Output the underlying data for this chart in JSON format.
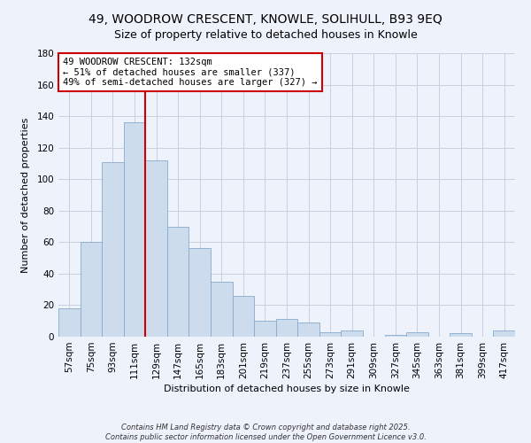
{
  "title": "49, WOODROW CRESCENT, KNOWLE, SOLIHULL, B93 9EQ",
  "subtitle": "Size of property relative to detached houses in Knowle",
  "xlabel": "Distribution of detached houses by size in Knowle",
  "ylabel": "Number of detached properties",
  "categories": [
    "57sqm",
    "75sqm",
    "93sqm",
    "111sqm",
    "129sqm",
    "147sqm",
    "165sqm",
    "183sqm",
    "201sqm",
    "219sqm",
    "237sqm",
    "255sqm",
    "273sqm",
    "291sqm",
    "309sqm",
    "327sqm",
    "345sqm",
    "363sqm",
    "381sqm",
    "399sqm",
    "417sqm"
  ],
  "values": [
    18,
    60,
    111,
    136,
    112,
    70,
    56,
    35,
    26,
    10,
    11,
    9,
    3,
    4,
    0,
    1,
    3,
    0,
    2,
    0,
    4
  ],
  "bar_color": "#ccdcec",
  "bar_edge_color": "#88aacc",
  "vline_position": 3.5,
  "vline_color": "#cc0000",
  "annotation_line1": "49 WOODROW CRESCENT: 132sqm",
  "annotation_line2": "← 51% of detached houses are smaller (337)",
  "annotation_line3": "49% of semi-detached houses are larger (327) →",
  "annotation_box_facecolor": "#ffffff",
  "annotation_box_edgecolor": "#cc0000",
  "ylim": [
    0,
    180
  ],
  "yticks": [
    0,
    20,
    40,
    60,
    80,
    100,
    120,
    140,
    160,
    180
  ],
  "footer1": "Contains HM Land Registry data © Crown copyright and database right 2025.",
  "footer2": "Contains public sector information licensed under the Open Government Licence v3.0.",
  "bg_color": "#eef2fb",
  "grid_color": "#c8d0e0",
  "title_fontsize": 10,
  "subtitle_fontsize": 9,
  "axis_label_fontsize": 8,
  "tick_fontsize": 7.5,
  "annotation_fontsize": 7.5,
  "footer_fontsize": 6
}
